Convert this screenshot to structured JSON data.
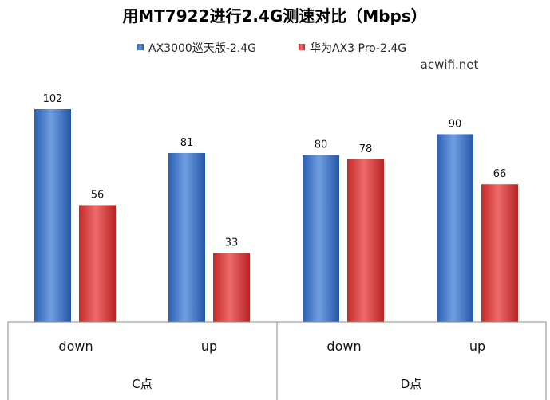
{
  "chart_data": {
    "type": "bar",
    "title": "用MT7922进行2.4G测速对比（Mbps）",
    "watermark": "acwifi.net",
    "groups": [
      {
        "label": "C点",
        "categories": [
          "down",
          "up"
        ]
      },
      {
        "label": "D点",
        "categories": [
          "down",
          "up"
        ]
      }
    ],
    "categories": [
      "down",
      "up",
      "down",
      "up"
    ],
    "series": [
      {
        "name": "AX3000巡天版-2.4G",
        "color": "#3a6fc4",
        "values": [
          102,
          81,
          80,
          90
        ]
      },
      {
        "name": "华为AX3 Pro-2.4G",
        "color": "#cc3333",
        "values": [
          56,
          33,
          78,
          66
        ]
      }
    ],
    "legend_position": "top",
    "grid": false,
    "ylim": [
      0,
      110
    ]
  }
}
